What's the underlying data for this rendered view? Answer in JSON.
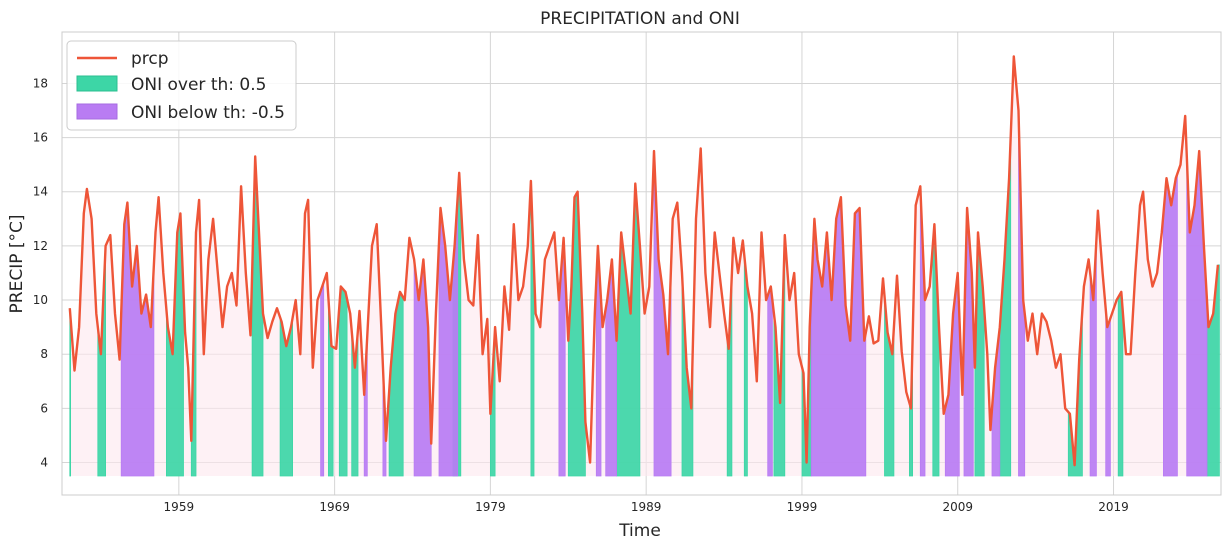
{
  "chart_data": {
    "type": "line",
    "title": "PRECIPITATION and ONI",
    "xlabel": "Time",
    "ylabel": "PRECIP [°C]",
    "xlim": [
      1951.5,
      2025.9
    ],
    "ylim": [
      2.8,
      19.9
    ],
    "x_ticks": [
      1959,
      1969,
      1979,
      1989,
      1999,
      2009,
      2019
    ],
    "y_ticks": [
      4,
      6,
      8,
      10,
      12,
      14,
      16,
      18
    ],
    "grid": true,
    "legend_placement": "top-left",
    "fill_baseline": 3.5,
    "colors": {
      "line": "#ee5538",
      "over": "#3dd6a6",
      "below": "#b97cf3",
      "neutral": "#fde8ee",
      "grid": "#d5d5d5"
    },
    "series": [
      {
        "name": "prcp",
        "kind": "line",
        "points": [
          [
            1952.0,
            9.7
          ],
          [
            1952.3,
            7.4
          ],
          [
            1952.6,
            9.0
          ],
          [
            1952.9,
            13.2
          ],
          [
            1953.1,
            14.1
          ],
          [
            1953.4,
            13.0
          ],
          [
            1953.7,
            9.5
          ],
          [
            1954.0,
            8.0
          ],
          [
            1954.3,
            12.0
          ],
          [
            1954.6,
            12.4
          ],
          [
            1954.9,
            9.5
          ],
          [
            1955.2,
            7.8
          ],
          [
            1955.5,
            12.8
          ],
          [
            1955.7,
            13.6
          ],
          [
            1956.0,
            10.5
          ],
          [
            1956.3,
            12.0
          ],
          [
            1956.6,
            9.5
          ],
          [
            1956.9,
            10.2
          ],
          [
            1957.2,
            9.0
          ],
          [
            1957.5,
            12.5
          ],
          [
            1957.7,
            13.8
          ],
          [
            1958.0,
            11.0
          ],
          [
            1958.3,
            9.0
          ],
          [
            1958.6,
            8.0
          ],
          [
            1958.9,
            12.5
          ],
          [
            1959.1,
            13.2
          ],
          [
            1959.4,
            8.8
          ],
          [
            1959.6,
            7.5
          ],
          [
            1959.8,
            4.8
          ],
          [
            1960.1,
            12.5
          ],
          [
            1960.3,
            13.7
          ],
          [
            1960.6,
            8.0
          ],
          [
            1960.9,
            11.5
          ],
          [
            1961.2,
            13.0
          ],
          [
            1961.5,
            11.0
          ],
          [
            1961.8,
            9.0
          ],
          [
            1962.1,
            10.5
          ],
          [
            1962.4,
            11.0
          ],
          [
            1962.7,
            9.8
          ],
          [
            1963.0,
            14.2
          ],
          [
            1963.3,
            11.0
          ],
          [
            1963.6,
            8.7
          ],
          [
            1963.9,
            15.3
          ],
          [
            1964.1,
            13.0
          ],
          [
            1964.4,
            9.5
          ],
          [
            1964.7,
            8.6
          ],
          [
            1965.0,
            9.2
          ],
          [
            1965.3,
            9.7
          ],
          [
            1965.6,
            9.2
          ],
          [
            1965.9,
            8.3
          ],
          [
            1966.2,
            9.0
          ],
          [
            1966.5,
            10.0
          ],
          [
            1966.8,
            8.0
          ],
          [
            1967.1,
            13.2
          ],
          [
            1967.3,
            13.7
          ],
          [
            1967.6,
            7.5
          ],
          [
            1967.9,
            10.0
          ],
          [
            1968.2,
            10.5
          ],
          [
            1968.5,
            11.0
          ],
          [
            1968.8,
            8.3
          ],
          [
            1969.1,
            8.2
          ],
          [
            1969.4,
            10.5
          ],
          [
            1969.7,
            10.3
          ],
          [
            1970.0,
            9.5
          ],
          [
            1970.3,
            7.5
          ],
          [
            1970.6,
            9.6
          ],
          [
            1970.9,
            6.5
          ],
          [
            1971.1,
            8.7
          ],
          [
            1971.4,
            12.0
          ],
          [
            1971.7,
            12.8
          ],
          [
            1972.0,
            9.0
          ],
          [
            1972.3,
            4.8
          ],
          [
            1972.6,
            7.5
          ],
          [
            1972.9,
            9.5
          ],
          [
            1973.2,
            10.3
          ],
          [
            1973.5,
            10.0
          ],
          [
            1973.8,
            12.3
          ],
          [
            1974.1,
            11.5
          ],
          [
            1974.4,
            10.0
          ],
          [
            1974.7,
            11.5
          ],
          [
            1975.0,
            9.0
          ],
          [
            1975.2,
            4.7
          ],
          [
            1975.5,
            9.5
          ],
          [
            1975.8,
            13.4
          ],
          [
            1976.1,
            12.0
          ],
          [
            1976.4,
            10.0
          ],
          [
            1976.7,
            12.0
          ],
          [
            1977.0,
            14.7
          ],
          [
            1977.3,
            11.5
          ],
          [
            1977.6,
            10.0
          ],
          [
            1977.9,
            9.8
          ],
          [
            1978.2,
            12.4
          ],
          [
            1978.5,
            8.0
          ],
          [
            1978.8,
            9.3
          ],
          [
            1979.0,
            5.8
          ],
          [
            1979.3,
            9.0
          ],
          [
            1979.6,
            7.0
          ],
          [
            1979.9,
            10.5
          ],
          [
            1980.2,
            8.9
          ],
          [
            1980.5,
            12.8
          ],
          [
            1980.8,
            10.0
          ],
          [
            1981.1,
            10.5
          ],
          [
            1981.4,
            12.0
          ],
          [
            1981.6,
            14.4
          ],
          [
            1981.9,
            9.5
          ],
          [
            1982.2,
            9.0
          ],
          [
            1982.5,
            11.5
          ],
          [
            1982.8,
            12.0
          ],
          [
            1983.1,
            12.5
          ],
          [
            1983.4,
            10.0
          ],
          [
            1983.7,
            12.3
          ],
          [
            1984.0,
            8.5
          ],
          [
            1984.2,
            10.5
          ],
          [
            1984.4,
            13.8
          ],
          [
            1984.6,
            14.0
          ],
          [
            1984.9,
            9.5
          ],
          [
            1985.1,
            5.5
          ],
          [
            1985.4,
            4.0
          ],
          [
            1985.7,
            9.5
          ],
          [
            1985.9,
            12.0
          ],
          [
            1986.2,
            9.0
          ],
          [
            1986.5,
            10.0
          ],
          [
            1986.8,
            11.5
          ],
          [
            1987.1,
            8.5
          ],
          [
            1987.4,
            12.5
          ],
          [
            1987.7,
            11.0
          ],
          [
            1988.0,
            9.5
          ],
          [
            1988.3,
            14.3
          ],
          [
            1988.6,
            12.0
          ],
          [
            1988.9,
            9.5
          ],
          [
            1989.2,
            10.5
          ],
          [
            1989.5,
            15.5
          ],
          [
            1989.8,
            11.5
          ],
          [
            1990.1,
            10.2
          ],
          [
            1990.4,
            8.0
          ],
          [
            1990.7,
            13.0
          ],
          [
            1991.0,
            13.6
          ],
          [
            1991.3,
            11.0
          ],
          [
            1991.6,
            7.5
          ],
          [
            1991.9,
            6.0
          ],
          [
            1992.2,
            13.0
          ],
          [
            1992.5,
            15.6
          ],
          [
            1992.8,
            11.0
          ],
          [
            1993.1,
            9.0
          ],
          [
            1993.4,
            12.5
          ],
          [
            1993.7,
            11.0
          ],
          [
            1994.0,
            9.5
          ],
          [
            1994.3,
            8.2
          ],
          [
            1994.6,
            12.3
          ],
          [
            1994.9,
            11.0
          ],
          [
            1995.2,
            12.2
          ],
          [
            1995.5,
            10.5
          ],
          [
            1995.8,
            9.5
          ],
          [
            1996.1,
            7.0
          ],
          [
            1996.4,
            12.5
          ],
          [
            1996.7,
            10.0
          ],
          [
            1997.0,
            10.5
          ],
          [
            1997.3,
            9.0
          ],
          [
            1997.6,
            6.2
          ],
          [
            1997.9,
            12.4
          ],
          [
            1998.2,
            10.0
          ],
          [
            1998.5,
            11.0
          ],
          [
            1998.8,
            8.0
          ],
          [
            1999.1,
            7.3
          ],
          [
            1999.3,
            4.0
          ],
          [
            1999.5,
            9.0
          ],
          [
            1999.8,
            13.0
          ],
          [
            2000.0,
            11.5
          ],
          [
            2000.3,
            10.5
          ],
          [
            2000.6,
            12.5
          ],
          [
            2000.9,
            10.0
          ],
          [
            2001.2,
            13.0
          ],
          [
            2001.5,
            13.8
          ],
          [
            2001.8,
            9.8
          ],
          [
            2002.1,
            8.5
          ],
          [
            2002.4,
            13.2
          ],
          [
            2002.7,
            13.4
          ],
          [
            2003.0,
            8.5
          ],
          [
            2003.3,
            9.4
          ],
          [
            2003.6,
            8.4
          ],
          [
            2003.9,
            8.5
          ],
          [
            2004.2,
            10.8
          ],
          [
            2004.5,
            8.8
          ],
          [
            2004.8,
            8.0
          ],
          [
            2005.1,
            10.9
          ],
          [
            2005.4,
            8.1
          ],
          [
            2005.7,
            6.6
          ],
          [
            2006.0,
            6.0
          ],
          [
            2006.3,
            13.5
          ],
          [
            2006.6,
            14.2
          ],
          [
            2006.9,
            10.0
          ],
          [
            2007.2,
            10.5
          ],
          [
            2007.5,
            12.8
          ],
          [
            2007.8,
            9.0
          ],
          [
            2008.1,
            5.8
          ],
          [
            2008.4,
            6.5
          ],
          [
            2008.7,
            9.5
          ],
          [
            2009.0,
            11.0
          ],
          [
            2009.3,
            6.5
          ],
          [
            2009.6,
            13.4
          ],
          [
            2009.9,
            11.0
          ],
          [
            2010.1,
            7.5
          ],
          [
            2010.3,
            12.5
          ],
          [
            2010.6,
            10.5
          ],
          [
            2010.9,
            8.0
          ],
          [
            2011.1,
            5.2
          ],
          [
            2011.4,
            7.5
          ],
          [
            2011.7,
            9.0
          ],
          [
            2012.0,
            11.5
          ],
          [
            2012.3,
            14.5
          ],
          [
            2012.6,
            19.0
          ],
          [
            2012.9,
            17.0
          ],
          [
            2013.2,
            10.0
          ],
          [
            2013.5,
            8.5
          ],
          [
            2013.8,
            9.5
          ],
          [
            2014.1,
            8.0
          ],
          [
            2014.4,
            9.5
          ],
          [
            2014.7,
            9.2
          ],
          [
            2015.0,
            8.5
          ],
          [
            2015.3,
            7.5
          ],
          [
            2015.6,
            8.0
          ],
          [
            2015.9,
            6.0
          ],
          [
            2016.2,
            5.8
          ],
          [
            2016.5,
            3.9
          ],
          [
            2016.8,
            7.8
          ],
          [
            2017.1,
            10.5
          ],
          [
            2017.4,
            11.5
          ],
          [
            2017.7,
            10.0
          ],
          [
            2018.0,
            13.3
          ],
          [
            2018.3,
            11.0
          ],
          [
            2018.6,
            9.0
          ],
          [
            2018.9,
            9.5
          ],
          [
            2019.2,
            10.0
          ],
          [
            2019.5,
            10.3
          ],
          [
            2019.8,
            8.0
          ],
          [
            2020.1,
            8.0
          ],
          [
            2020.4,
            11.0
          ],
          [
            2020.7,
            13.5
          ],
          [
            2020.9,
            14.0
          ],
          [
            2021.2,
            11.5
          ],
          [
            2021.5,
            10.5
          ],
          [
            2021.8,
            11.0
          ],
          [
            2022.1,
            12.5
          ],
          [
            2022.4,
            14.5
          ],
          [
            2022.7,
            13.5
          ],
          [
            2023.0,
            14.5
          ],
          [
            2023.3,
            15.0
          ],
          [
            2023.6,
            16.8
          ],
          [
            2023.9,
            12.5
          ],
          [
            2024.2,
            13.5
          ],
          [
            2024.5,
            15.5
          ],
          [
            2024.8,
            12.0
          ],
          [
            2025.1,
            9.0
          ],
          [
            2025.4,
            9.5
          ],
          [
            2025.7,
            11.3
          ]
        ]
      },
      {
        "name": "ONI over th: 0.5",
        "kind": "fill",
        "color": "#3dd6a6",
        "intervals": [
          [
            1952.0,
            1952.05
          ],
          [
            1953.8,
            1954.3
          ],
          [
            1958.2,
            1959.3
          ],
          [
            1959.8,
            1960.1
          ],
          [
            1963.7,
            1964.4
          ],
          [
            1965.5,
            1966.3
          ],
          [
            1968.6,
            1968.9
          ],
          [
            1969.3,
            1969.8
          ],
          [
            1970.1,
            1970.5
          ],
          [
            1972.5,
            1973.4
          ],
          [
            1976.6,
            1977.1
          ],
          [
            1979.0,
            1979.3
          ],
          [
            1981.6,
            1981.8
          ],
          [
            1984.0,
            1985.1
          ],
          [
            1987.1,
            1988.6
          ],
          [
            1991.3,
            1992.0
          ],
          [
            1994.2,
            1994.5
          ],
          [
            1995.3,
            1995.5
          ],
          [
            1997.2,
            1997.9
          ],
          [
            1999.0,
            1999.6
          ],
          [
            2004.3,
            2004.9
          ],
          [
            2005.9,
            2006.1
          ],
          [
            2007.4,
            2007.8
          ],
          [
            2010.1,
            2010.7
          ],
          [
            2011.7,
            2012.4
          ],
          [
            2016.1,
            2017.0
          ],
          [
            2019.3,
            2019.6
          ],
          [
            2025.0,
            2025.8
          ]
        ]
      },
      {
        "name": "ONI below th: -0.5",
        "kind": "fill",
        "color": "#b97cf3",
        "intervals": [
          [
            1955.3,
            1957.4
          ],
          [
            1968.1,
            1968.3
          ],
          [
            1970.9,
            1971.1
          ],
          [
            1972.1,
            1972.3
          ],
          [
            1974.1,
            1975.2
          ],
          [
            1975.7,
            1976.9
          ],
          [
            1983.4,
            1983.8
          ],
          [
            1985.8,
            1986.1
          ],
          [
            1986.4,
            1987.1
          ],
          [
            1989.5,
            1990.6
          ],
          [
            1996.8,
            1997.1
          ],
          [
            1999.6,
            2003.1
          ],
          [
            2006.6,
            2006.9
          ],
          [
            2008.2,
            2009.1
          ],
          [
            2009.4,
            2010.0
          ],
          [
            2011.2,
            2011.7
          ],
          [
            2012.9,
            2013.3
          ],
          [
            2017.5,
            2017.9
          ],
          [
            2018.5,
            2018.8
          ],
          [
            2022.2,
            2023.1
          ],
          [
            2023.7,
            2025.0
          ]
        ]
      }
    ]
  }
}
